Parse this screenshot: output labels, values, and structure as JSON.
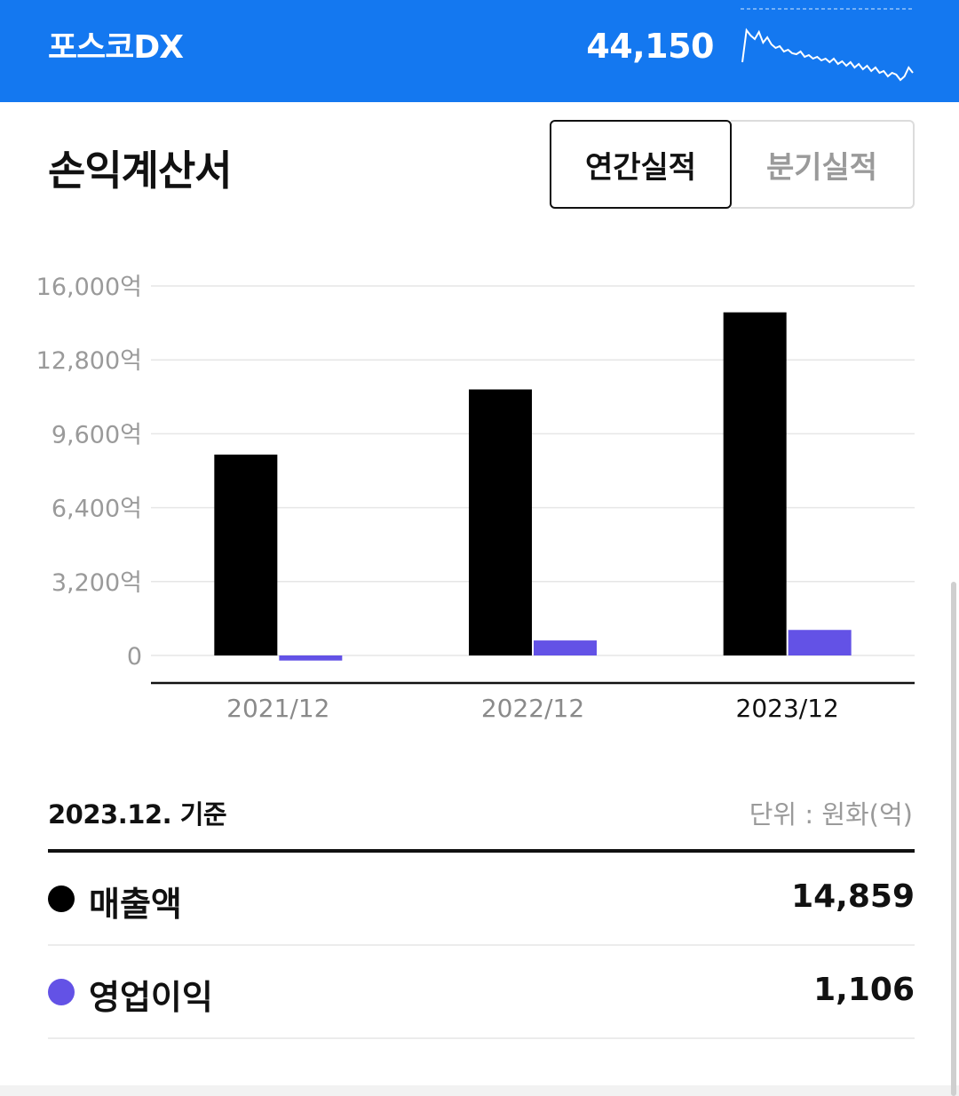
{
  "header": {
    "stock_name": "포스코DX",
    "price": "44,150",
    "sparkline": [
      64,
      28,
      34,
      38,
      30,
      42,
      36,
      44,
      48,
      46,
      52,
      50,
      54,
      55,
      52,
      58,
      56,
      60,
      58,
      62,
      60,
      64,
      60,
      66,
      63,
      68,
      64,
      70,
      66,
      72,
      68,
      74,
      70,
      76,
      74,
      80,
      76,
      78,
      84,
      80,
      70,
      76
    ]
  },
  "section": {
    "title": "손익계산서",
    "tabs": [
      "연간실적",
      "분기실적"
    ],
    "active_tab": "연간실적"
  },
  "chart_data": {
    "type": "bar",
    "categories": [
      "2021/12",
      "2022/12",
      "2023/12"
    ],
    "selected_category": "2023/12",
    "series": [
      {
        "name": "매출액",
        "color": "#000000",
        "values": [
          8700,
          11520,
          14859
        ]
      },
      {
        "name": "영업이익",
        "color": "#6352e6",
        "values": [
          -220,
          650,
          1106
        ]
      }
    ],
    "y_ticks": [
      "16,000억",
      "12,800억",
      "9,600억",
      "6,400억",
      "3,200억",
      "0"
    ],
    "ylim": [
      0,
      16000
    ],
    "grid": true
  },
  "summary": {
    "basis": "2023.12. 기준",
    "unit": "단위 : 원화(억)",
    "rows": [
      {
        "label": "매출액",
        "value": "14,859",
        "color": "#000000"
      },
      {
        "label": "영업이익",
        "value": "1,106",
        "color": "#6352e6"
      }
    ]
  }
}
